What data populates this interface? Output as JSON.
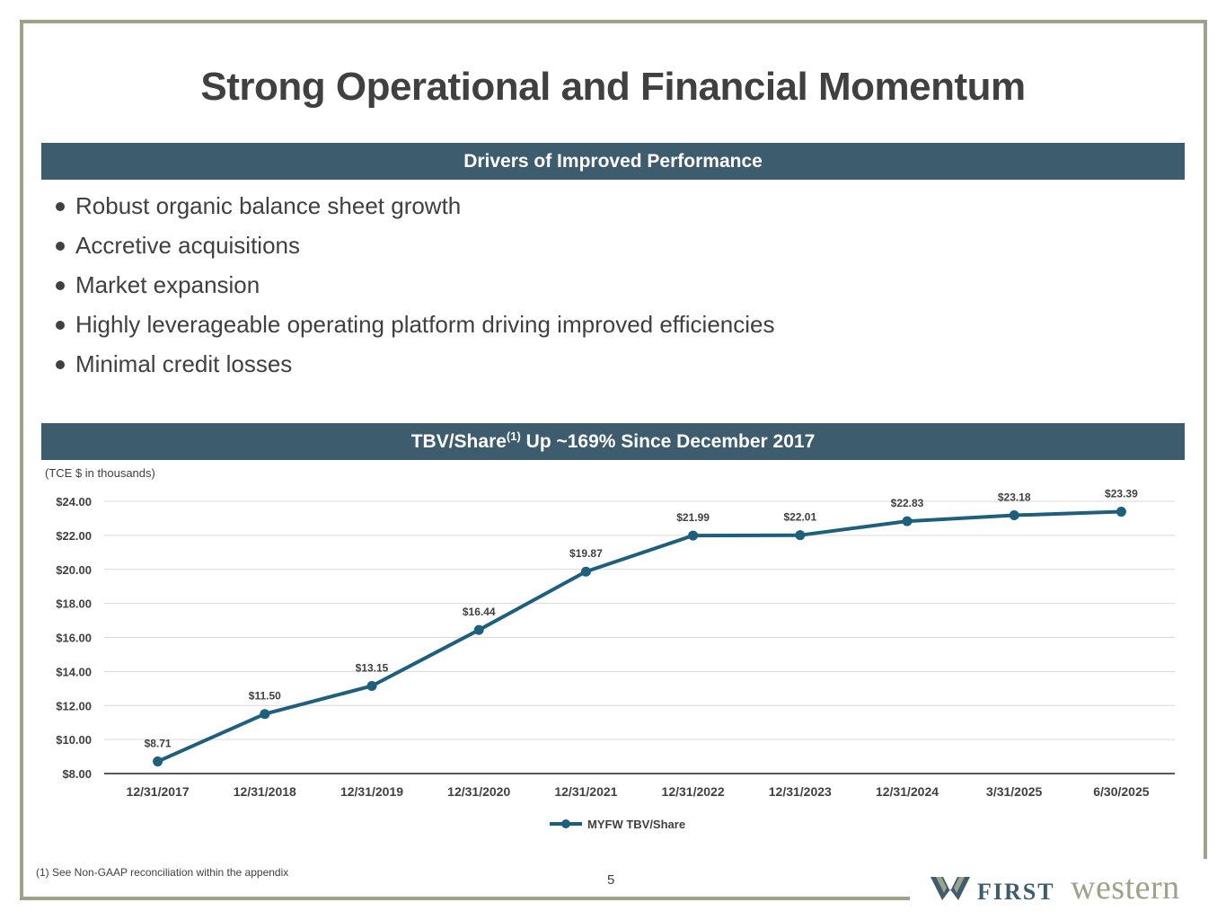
{
  "title": "Strong Operational and Financial Momentum",
  "drivers": {
    "heading": "Drivers of Improved Performance",
    "items": [
      "Robust organic balance sheet growth",
      "Accretive acquisitions",
      "Market expansion",
      "Highly leverageable operating platform driving improved efficiencies",
      "Minimal credit losses"
    ]
  },
  "chart_section": {
    "heading_pre": "TBV/Share",
    "heading_sup": "(1)",
    "heading_post": "Up ~169% Since December 2017",
    "unit_note": "(TCE $ in thousands)"
  },
  "chart_data": {
    "type": "line",
    "title": "",
    "xlabel": "",
    "ylabel": "",
    "categories": [
      "12/31/2017",
      "12/31/2018",
      "12/31/2019",
      "12/31/2020",
      "12/31/2021",
      "12/31/2022",
      "12/31/2023",
      "12/31/2024",
      "3/31/2025",
      "6/30/2025"
    ],
    "series": [
      {
        "name": "MYFW TBV/Share",
        "values": [
          8.71,
          11.5,
          13.15,
          16.44,
          19.87,
          21.99,
          22.01,
          22.83,
          23.18,
          23.39
        ],
        "data_labels": [
          "$8.71",
          "$11.50",
          "$13.15",
          "$16.44",
          "$19.87",
          "$21.99",
          "$22.01",
          "$22.83",
          "$23.18",
          "$23.39"
        ]
      }
    ],
    "yticks": [
      "$8.00",
      "$10.00",
      "$12.00",
      "$14.00",
      "$16.00",
      "$18.00",
      "$20.00",
      "$22.00",
      "$24.00"
    ],
    "ylim": [
      8,
      24
    ],
    "grid": true,
    "legend": "bottom-center",
    "colors": {
      "line": "#1f5f7e",
      "grid": "#d9d9d9",
      "axis": "#595959"
    }
  },
  "footnote": "(1) See Non-GAAP reconciliation within the appendix",
  "page_number": "5",
  "logo": {
    "first": "FIRST",
    "western": "western"
  },
  "colors": {
    "band": "#3d5c6e",
    "frame": "#9ea28a",
    "text": "#404040"
  }
}
